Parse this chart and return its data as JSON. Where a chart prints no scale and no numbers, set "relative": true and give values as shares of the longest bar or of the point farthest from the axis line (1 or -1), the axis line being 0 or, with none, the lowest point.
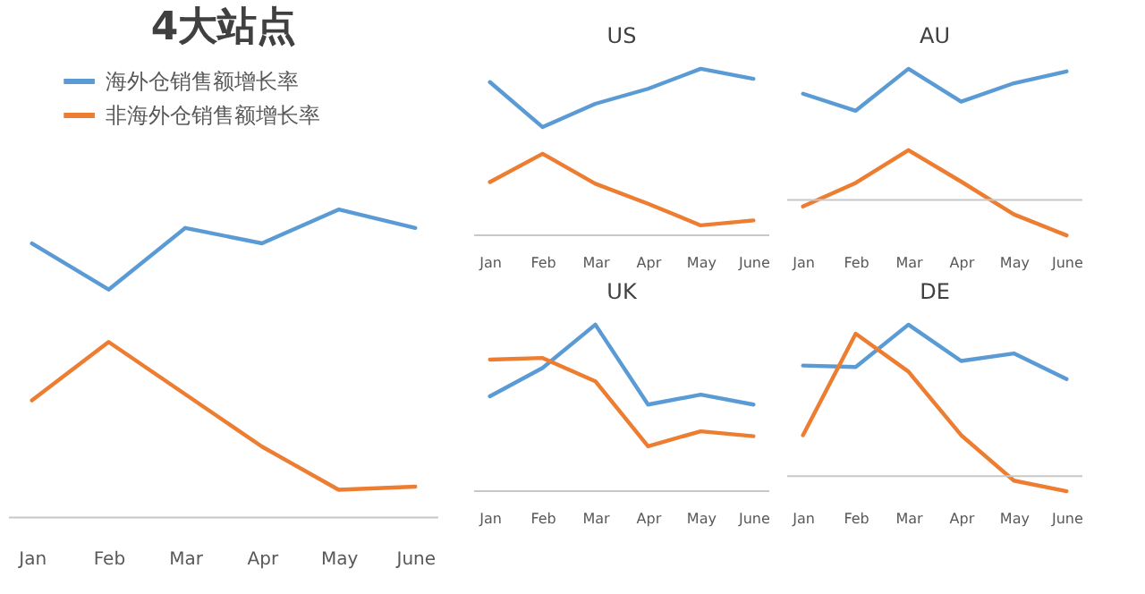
{
  "chart_data": [
    {
      "type": "line",
      "title": "4大站点",
      "categories": [
        "Jan",
        "Feb",
        "Mar",
        "Apr",
        "May",
        "June"
      ],
      "relative": true,
      "legend": "top",
      "grid": false,
      "tick_labels": "x",
      "line_style": "solid",
      "series": [
        {
          "name": "海外仓销售额增长率",
          "color": "#5b9bd5",
          "values": [
            0.89,
            0.74,
            0.94,
            0.89,
            1,
            0.94
          ]
        },
        {
          "name": "非海外仓销售额增长率",
          "color": "#ed7d31",
          "values": [
            0.38,
            0.57,
            0.4,
            0.23,
            0.09,
            0.1
          ]
        }
      ]
    },
    {
      "type": "line",
      "title": "US",
      "categories": [
        "Jan",
        "Feb",
        "Mar",
        "Apr",
        "May",
        "June"
      ],
      "relative": true,
      "legend": false,
      "grid": false,
      "tick_labels": "x",
      "line_style": "solid",
      "series": [
        {
          "color": "#5b9bd5",
          "values": [
            0.92,
            0.65,
            0.79,
            0.88,
            1,
            0.94
          ]
        },
        {
          "color": "#ed7d31",
          "values": [
            0.32,
            0.49,
            0.31,
            0.19,
            0.06,
            0.09
          ]
        }
      ]
    },
    {
      "type": "line",
      "title": "AU",
      "categories": [
        "Jan",
        "Feb",
        "Mar",
        "Apr",
        "May",
        "June"
      ],
      "relative": true,
      "legend": false,
      "grid": false,
      "tick_labels": "x",
      "line_style": "solid",
      "series": [
        {
          "color": "#5b9bd5",
          "values": [
            0.81,
            0.68,
            1,
            0.75,
            0.89,
            0.98
          ]
        },
        {
          "color": "#ed7d31",
          "values": [
            -0.05,
            0.13,
            0.38,
            0.14,
            -0.11,
            -0.27
          ]
        }
      ]
    },
    {
      "type": "line",
      "title": "UK",
      "categories": [
        "Jan",
        "Feb",
        "Mar",
        "Apr",
        "May",
        "June"
      ],
      "relative": true,
      "legend": false,
      "grid": false,
      "tick_labels": "x",
      "line_style": "solid",
      "series": [
        {
          "color": "#5b9bd5",
          "values": [
            0.57,
            0.74,
            1,
            0.52,
            0.58,
            0.52
          ]
        },
        {
          "color": "#ed7d31",
          "values": [
            0.79,
            0.8,
            0.66,
            0.27,
            0.36,
            0.33
          ]
        }
      ]
    },
    {
      "type": "line",
      "title": "DE",
      "categories": [
        "Jan",
        "Feb",
        "Mar",
        "Apr",
        "May",
        "June"
      ],
      "relative": true,
      "legend": false,
      "grid": false,
      "tick_labels": "x",
      "line_style": "solid",
      "series": [
        {
          "color": "#5b9bd5",
          "values": [
            0.73,
            0.72,
            1,
            0.76,
            0.81,
            0.64
          ]
        },
        {
          "color": "#ed7d31",
          "values": [
            0.27,
            0.94,
            0.69,
            0.27,
            -0.03,
            -0.1
          ]
        }
      ]
    }
  ]
}
